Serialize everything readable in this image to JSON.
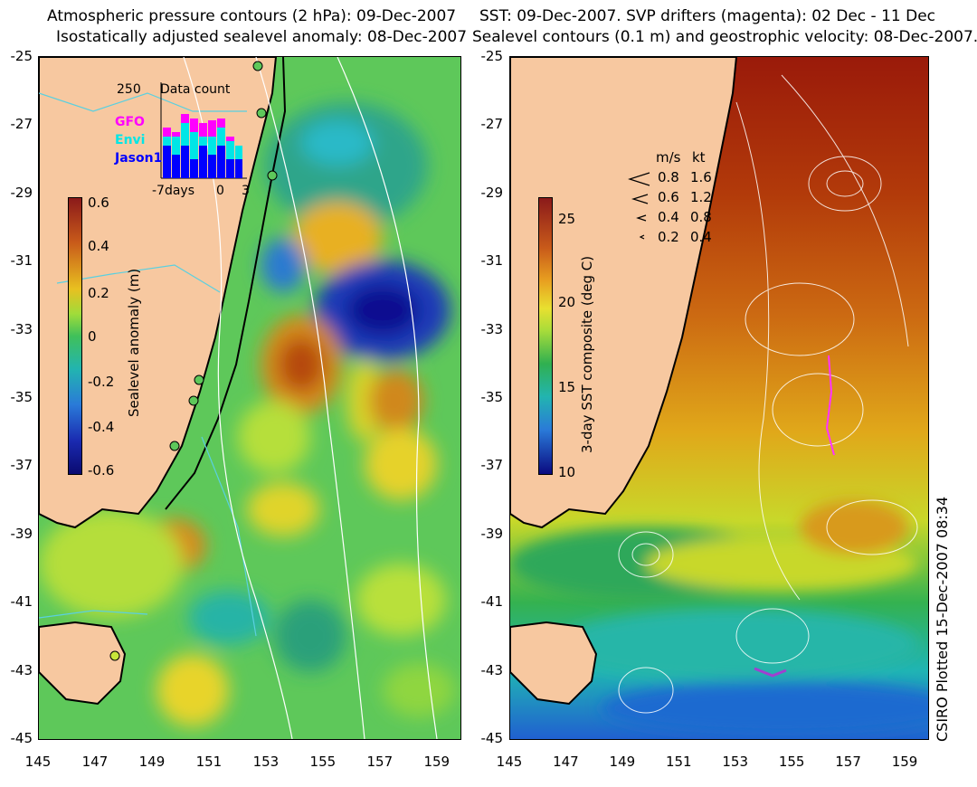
{
  "left_panel": {
    "title_line1": "Atmospheric pressure contours (2 hPa): 09-Dec-2007",
    "title_line2": "Isostatically adjusted sealevel anomaly: 08-Dec-2007",
    "colorbar": {
      "label": "Sealevel anomaly (m)",
      "ticks": [
        "0.6",
        "0.4",
        "0.2",
        "0",
        "-0.2",
        "-0.4",
        "-0.6"
      ],
      "range": [
        -0.6,
        0.6
      ]
    },
    "inset": {
      "title": "Data count",
      "ymax_label": "250",
      "x_left_label": "-7days",
      "x_zero_label": "0",
      "x_right_label": "3",
      "legend": [
        {
          "name": "GFO",
          "color": "#ff00ff"
        },
        {
          "name": "Envi",
          "color": "#00e6e6"
        },
        {
          "name": "Jason1",
          "color": "#0000ff"
        }
      ]
    }
  },
  "right_panel": {
    "title_line1": "SST: 09-Dec-2007. SVP drifters (magenta): 02 Dec - 11 Dec",
    "title_line2": "Sealevel contours (0.1 m) and geostrophic velocity: 08-Dec-2007.",
    "colorbar": {
      "label": "3-day SST composite (deg C)",
      "ticks": [
        "25",
        "20",
        "15",
        "10"
      ],
      "range": [
        10,
        26
      ]
    },
    "speed_legend": {
      "header_ms": "m/s",
      "header_kt": "kt",
      "rows": [
        {
          "ms": "0.8",
          "kt": "1.6"
        },
        {
          "ms": "0.6",
          "kt": "1.2"
        },
        {
          "ms": "0.4",
          "kt": "0.8"
        },
        {
          "ms": "0.2",
          "kt": "0.4"
        }
      ]
    }
  },
  "axes": {
    "lat_labels": [
      "-25",
      "-27",
      "-29",
      "-31",
      "-33",
      "-35",
      "-37",
      "-39",
      "-41",
      "-43",
      "-45"
    ],
    "lon_labels": [
      "145",
      "147",
      "149",
      "151",
      "153",
      "155",
      "157",
      "159"
    ]
  },
  "credit": "CSIRO Plotted 15-Dec-2007 08:34"
}
